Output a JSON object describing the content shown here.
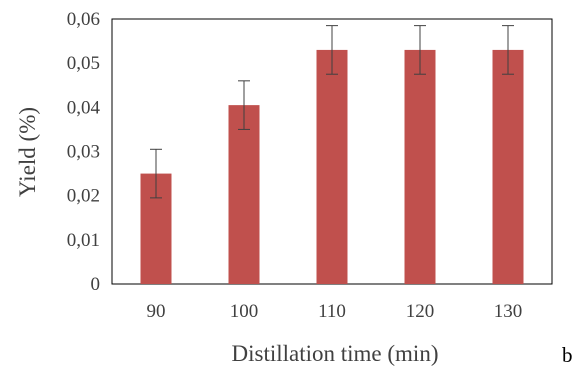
{
  "chart_data": {
    "type": "bar",
    "categories": [
      "90",
      "100",
      "110",
      "120",
      "130"
    ],
    "values": [
      0.025,
      0.0405,
      0.053,
      0.053,
      0.053
    ],
    "error": [
      0.0055,
      0.0055,
      0.0055,
      0.0055,
      0.0055
    ],
    "xlabel": "Distillation time (min)",
    "ylabel": "Yield (%)",
    "ylim": [
      0,
      0.06
    ],
    "yticks": [
      0,
      0.01,
      0.02,
      0.03,
      0.04,
      0.05,
      0.06
    ],
    "ytick_labels": [
      "0",
      "0,01",
      "0,02",
      "0,03",
      "0,04",
      "0,05",
      "0,06"
    ],
    "grid": false,
    "bar_color": "#c0504d",
    "error_color": "#404040",
    "panel_label": "b"
  }
}
